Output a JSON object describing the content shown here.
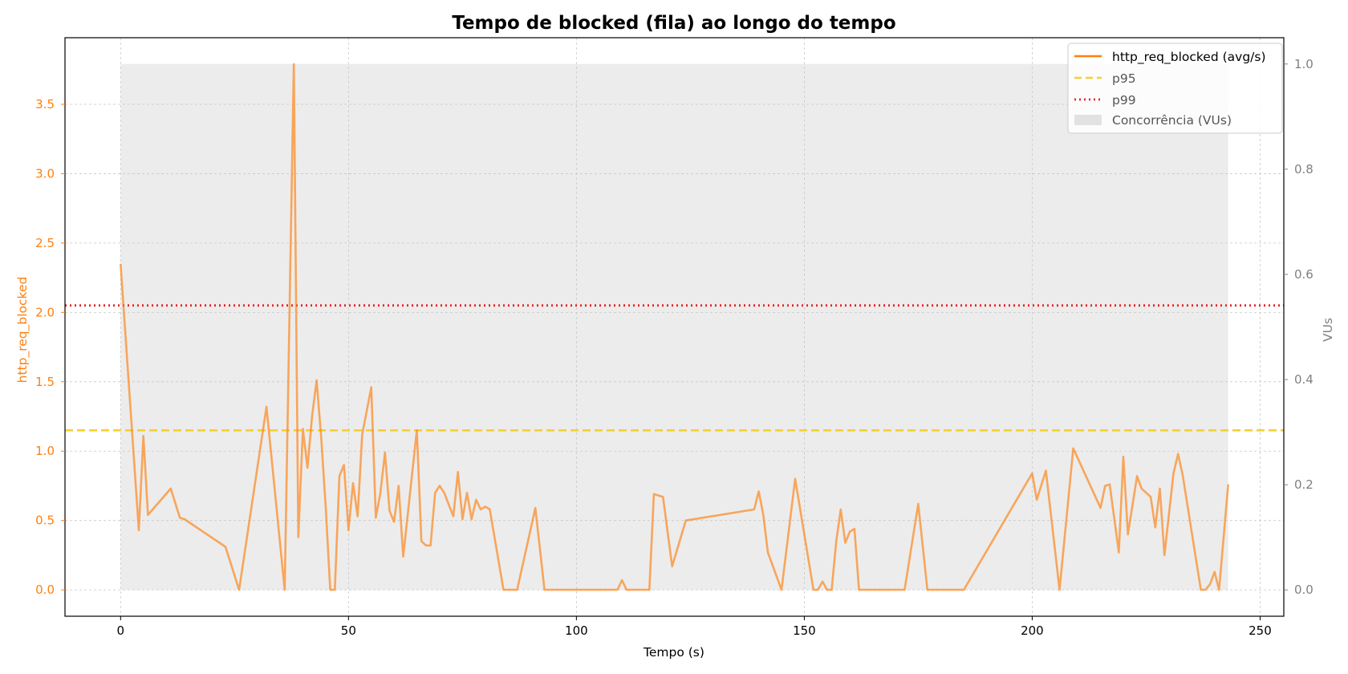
{
  "chart_data": {
    "type": "line",
    "title": "Tempo de blocked (fila) ao longo do tempo",
    "xlabel": "Tempo (s)",
    "ylabel_left": "http_req_blocked",
    "ylabel_right": "VUs",
    "xlim": [
      -12.2,
      255.2
    ],
    "ylim_left": [
      -0.19,
      3.98
    ],
    "ylim_right": [
      -0.05,
      1.05
    ],
    "x_ticks": [
      0,
      50,
      100,
      150,
      200,
      250
    ],
    "x_tick_labels": [
      "0",
      "50",
      "100",
      "150",
      "200",
      "250"
    ],
    "y_left_ticks": [
      0.0,
      0.5,
      1.0,
      1.5,
      2.0,
      2.5,
      3.0,
      3.5
    ],
    "y_left_tick_labels": [
      "0.0",
      "0.5",
      "1.0",
      "1.5",
      "2.0",
      "2.5",
      "3.0",
      "3.5"
    ],
    "y_right_ticks": [
      0.0,
      0.2,
      0.4,
      0.6,
      0.8,
      1.0
    ],
    "y_right_tick_labels": [
      "0.0",
      "0.2",
      "0.4",
      "0.6",
      "0.8",
      "1.0"
    ],
    "grid": true,
    "legend_position": "top-right",
    "series": [
      {
        "name": "http_req_blocked (avg/s)",
        "axis": "left",
        "color": "#ff7f0e",
        "style": "solid",
        "x": [
          0,
          4,
          5,
          6,
          11,
          13,
          14,
          23,
          26,
          32,
          36,
          38,
          39,
          40,
          41,
          42,
          43,
          44,
          45,
          46,
          47,
          48,
          49,
          50,
          51,
          52,
          53,
          55,
          56,
          57,
          58,
          59,
          60,
          61,
          62,
          65,
          66,
          67,
          68,
          69,
          70,
          71,
          73,
          74,
          75,
          76,
          77,
          78,
          79,
          80,
          81,
          84,
          87,
          91,
          93,
          109,
          110,
          111,
          116,
          117,
          119,
          121,
          124,
          139,
          140,
          141,
          142,
          145,
          148,
          152,
          153,
          154,
          155,
          156,
          157,
          158,
          159,
          160,
          161,
          162,
          172,
          175,
          177,
          185,
          200,
          201,
          203,
          206,
          209,
          215,
          216,
          217,
          219,
          220,
          221,
          223,
          224,
          226,
          227,
          228,
          229,
          231,
          232,
          233,
          237,
          238,
          239,
          240,
          241,
          243
        ],
        "y": [
          2.35,
          0.43,
          1.11,
          0.54,
          0.73,
          0.52,
          0.51,
          0.31,
          0.0,
          1.32,
          0.0,
          3.79,
          0.38,
          1.16,
          0.88,
          1.25,
          1.51,
          1.1,
          0.6,
          0.0,
          0.0,
          0.82,
          0.9,
          0.43,
          0.77,
          0.53,
          1.12,
          1.46,
          0.52,
          0.7,
          0.99,
          0.57,
          0.49,
          0.75,
          0.24,
          1.15,
          0.35,
          0.32,
          0.32,
          0.7,
          0.75,
          0.7,
          0.53,
          0.85,
          0.51,
          0.7,
          0.51,
          0.65,
          0.58,
          0.6,
          0.58,
          0.0,
          0.0,
          0.59,
          0.0,
          0.0,
          0.07,
          0.0,
          0.0,
          0.69,
          0.67,
          0.17,
          0.5,
          0.58,
          0.71,
          0.54,
          0.27,
          0.0,
          0.8,
          0.0,
          0.0,
          0.06,
          0.0,
          0.0,
          0.35,
          0.58,
          0.34,
          0.42,
          0.44,
          0.0,
          0.0,
          0.62,
          0.0,
          0.0,
          0.84,
          0.65,
          0.86,
          0.0,
          1.02,
          0.59,
          0.75,
          0.76,
          0.27,
          0.96,
          0.4,
          0.82,
          0.73,
          0.67,
          0.45,
          0.73,
          0.25,
          0.84,
          0.98,
          0.83,
          0.0,
          0.0,
          0.04,
          0.13,
          0.0,
          0.76
        ]
      },
      {
        "name": "p95",
        "axis": "left",
        "color": "#f5d033",
        "style": "dashed",
        "y": 1.15
      },
      {
        "name": "p99",
        "axis": "left",
        "color": "#ee2222",
        "style": "dotted",
        "y": 2.05
      },
      {
        "name": "Concorrência (VUs)",
        "axis": "right",
        "color": "#d9d9d9",
        "style": "area",
        "x": [
          0,
          243
        ],
        "y": [
          1.0,
          1.0
        ]
      }
    ]
  }
}
